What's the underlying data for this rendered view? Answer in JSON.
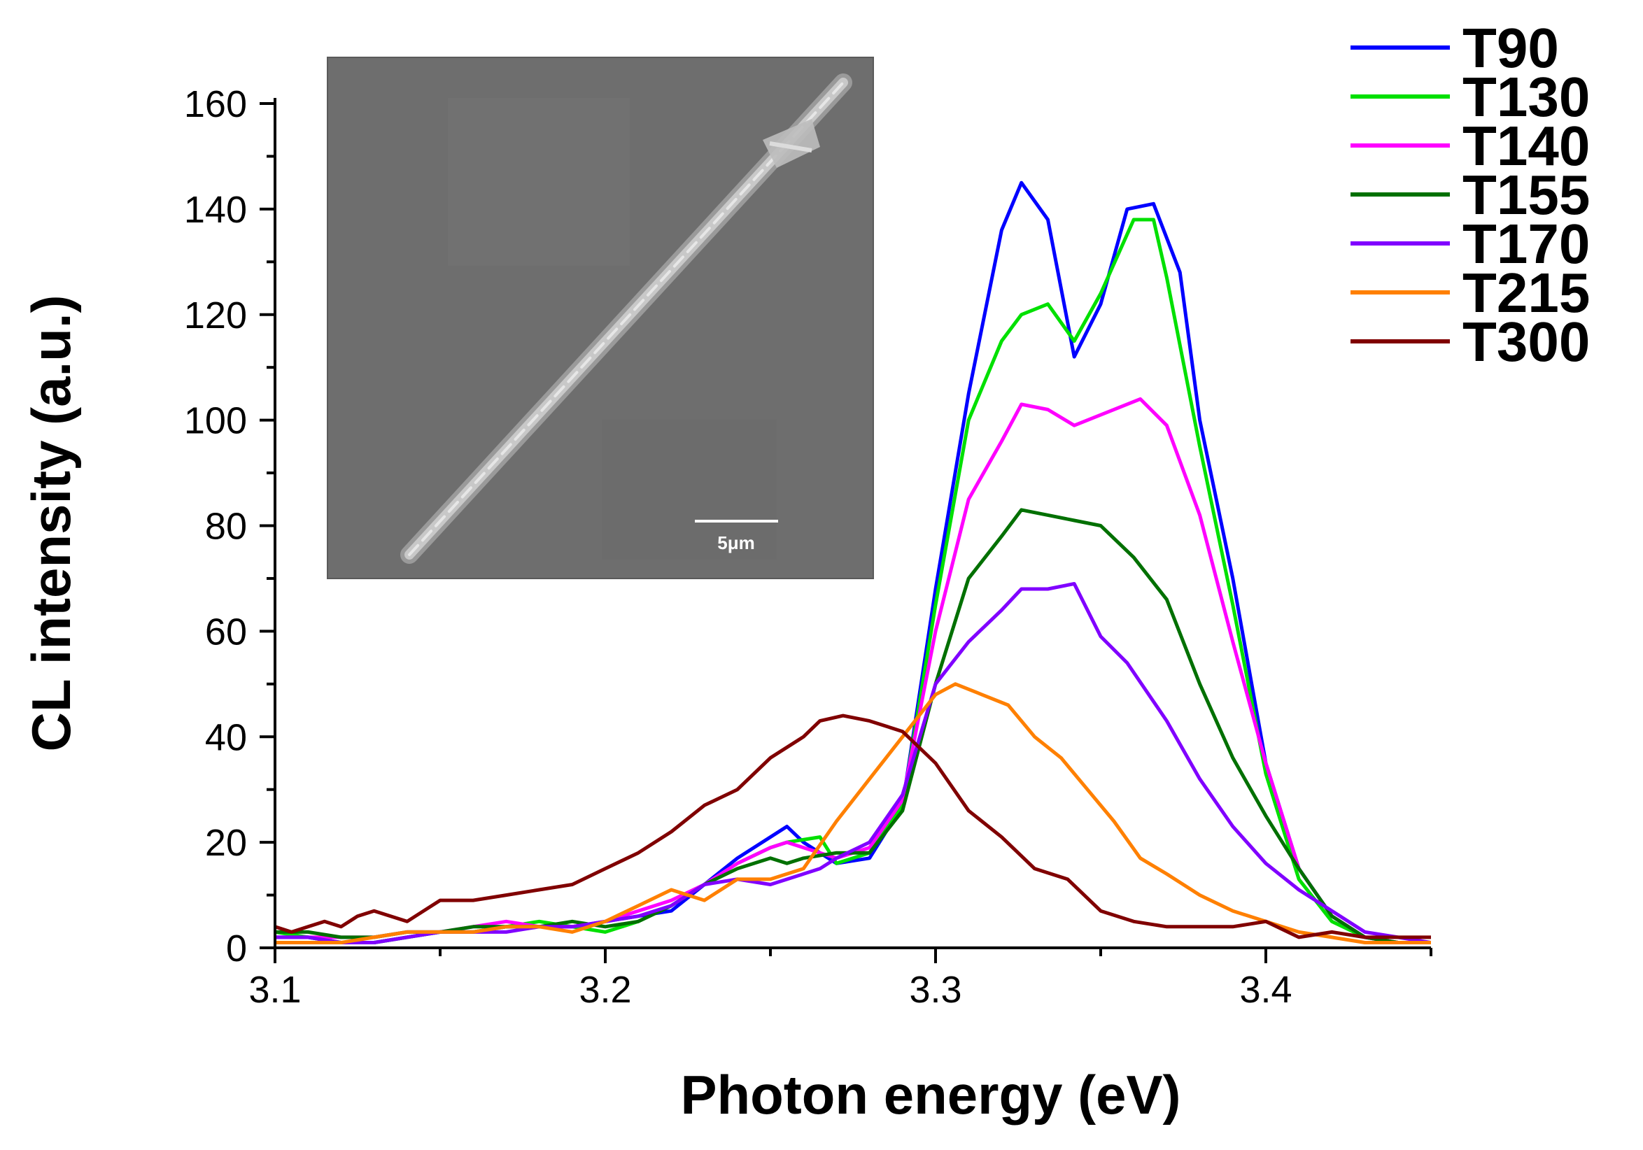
{
  "chart_data": {
    "type": "line",
    "xlabel": "Photon energy (eV)",
    "ylabel": "CL intensity (a.u.)",
    "xlim": [
      3.1,
      3.45
    ],
    "ylim": [
      0,
      160
    ],
    "xticks": [
      3.1,
      3.2,
      3.3,
      3.4
    ],
    "yticks": [
      0,
      20,
      40,
      60,
      80,
      100,
      120,
      140,
      160
    ],
    "xtick_labels": [
      "3.1",
      "3.2",
      "3.3",
      "3.4"
    ],
    "ytick_labels": [
      "0",
      "20",
      "40",
      "60",
      "80",
      "100",
      "120",
      "140",
      "160"
    ],
    "legend_position": "top-right, outside plot",
    "inset": {
      "description": "SEM micrograph of a single nanowire",
      "scale_bar_label": "5μm"
    },
    "series": [
      {
        "name": "T90",
        "color": "#0000ff",
        "x": [
          3.1,
          3.11,
          3.12,
          3.13,
          3.14,
          3.15,
          3.16,
          3.17,
          3.18,
          3.19,
          3.2,
          3.21,
          3.22,
          3.23,
          3.24,
          3.25,
          3.255,
          3.26,
          3.27,
          3.28,
          3.29,
          3.3,
          3.31,
          3.32,
          3.326,
          3.334,
          3.342,
          3.35,
          3.358,
          3.366,
          3.374,
          3.38,
          3.39,
          3.4,
          3.41,
          3.42,
          3.43,
          3.44,
          3.45
        ],
        "y": [
          2,
          2,
          1,
          1,
          2,
          3,
          3,
          4,
          4,
          4,
          5,
          6,
          7,
          12,
          17,
          21,
          23,
          20,
          16,
          17,
          27,
          68,
          105,
          136,
          145,
          138,
          112,
          122,
          140,
          141,
          128,
          100,
          70,
          35,
          15,
          6,
          2,
          1,
          1
        ]
      },
      {
        "name": "T130",
        "color": "#00e000",
        "x": [
          3.1,
          3.11,
          3.12,
          3.13,
          3.14,
          3.15,
          3.16,
          3.17,
          3.18,
          3.19,
          3.2,
          3.21,
          3.22,
          3.23,
          3.24,
          3.25,
          3.255,
          3.265,
          3.27,
          3.28,
          3.29,
          3.3,
          3.31,
          3.32,
          3.326,
          3.334,
          3.342,
          3.35,
          3.36,
          3.366,
          3.37,
          3.38,
          3.39,
          3.4,
          3.41,
          3.42,
          3.43,
          3.44,
          3.45
        ],
        "y": [
          3,
          2,
          1,
          1,
          2,
          3,
          3,
          4,
          5,
          4,
          3,
          5,
          8,
          12,
          16,
          19,
          20,
          21,
          16,
          18,
          27,
          65,
          100,
          115,
          120,
          122,
          115,
          124,
          138,
          138,
          127,
          95,
          65,
          33,
          13,
          5,
          2,
          1,
          1
        ]
      },
      {
        "name": "T140",
        "color": "#ff00ff",
        "x": [
          3.1,
          3.11,
          3.12,
          3.13,
          3.14,
          3.15,
          3.16,
          3.17,
          3.18,
          3.19,
          3.2,
          3.21,
          3.22,
          3.23,
          3.24,
          3.25,
          3.255,
          3.26,
          3.27,
          3.28,
          3.29,
          3.3,
          3.31,
          3.32,
          3.326,
          3.334,
          3.342,
          3.35,
          3.362,
          3.37,
          3.38,
          3.39,
          3.4,
          3.41,
          3.42,
          3.43,
          3.44,
          3.45
        ],
        "y": [
          2,
          2,
          2,
          2,
          3,
          3,
          4,
          5,
          4,
          4,
          5,
          7,
          9,
          12,
          16,
          19,
          20,
          19,
          17,
          19,
          28,
          60,
          85,
          96,
          103,
          102,
          99,
          101,
          104,
          99,
          82,
          58,
          35,
          15,
          6,
          2,
          1,
          1
        ]
      },
      {
        "name": "T155",
        "color": "#007000",
        "x": [
          3.1,
          3.11,
          3.12,
          3.13,
          3.14,
          3.15,
          3.16,
          3.17,
          3.18,
          3.19,
          3.2,
          3.21,
          3.22,
          3.23,
          3.24,
          3.25,
          3.255,
          3.26,
          3.27,
          3.28,
          3.29,
          3.3,
          3.31,
          3.32,
          3.326,
          3.334,
          3.342,
          3.35,
          3.36,
          3.37,
          3.38,
          3.39,
          3.4,
          3.41,
          3.42,
          3.43,
          3.44,
          3.45
        ],
        "y": [
          3,
          3,
          2,
          2,
          3,
          3,
          4,
          4,
          4,
          5,
          4,
          5,
          8,
          12,
          15,
          17,
          16,
          17,
          18,
          18,
          26,
          50,
          70,
          78,
          83,
          82,
          81,
          80,
          74,
          66,
          50,
          36,
          25,
          15,
          6,
          2,
          1,
          1
        ]
      },
      {
        "name": "T170",
        "color": "#8000ff",
        "x": [
          3.1,
          3.11,
          3.12,
          3.13,
          3.14,
          3.15,
          3.16,
          3.17,
          3.18,
          3.19,
          3.2,
          3.21,
          3.22,
          3.23,
          3.24,
          3.25,
          3.26,
          3.265,
          3.27,
          3.28,
          3.29,
          3.3,
          3.31,
          3.32,
          3.326,
          3.334,
          3.342,
          3.35,
          3.358,
          3.37,
          3.38,
          3.39,
          3.4,
          3.41,
          3.42,
          3.43,
          3.44,
          3.45
        ],
        "y": [
          2,
          2,
          1,
          1,
          2,
          3,
          3,
          3,
          4,
          4,
          5,
          6,
          8,
          12,
          13,
          12,
          14,
          15,
          17,
          20,
          29,
          50,
          58,
          64,
          68,
          68,
          69,
          59,
          54,
          43,
          32,
          23,
          16,
          11,
          7,
          3,
          2,
          1
        ]
      },
      {
        "name": "T215",
        "color": "#ff8000",
        "x": [
          3.1,
          3.11,
          3.12,
          3.13,
          3.14,
          3.15,
          3.16,
          3.17,
          3.18,
          3.19,
          3.2,
          3.21,
          3.22,
          3.23,
          3.24,
          3.25,
          3.26,
          3.27,
          3.28,
          3.29,
          3.3,
          3.306,
          3.314,
          3.322,
          3.33,
          3.338,
          3.346,
          3.354,
          3.362,
          3.37,
          3.38,
          3.39,
          3.4,
          3.41,
          3.42,
          3.43,
          3.44,
          3.45
        ],
        "y": [
          1,
          1,
          1,
          2,
          3,
          3,
          3,
          4,
          4,
          3,
          5,
          8,
          11,
          9,
          13,
          13,
          15,
          24,
          32,
          40,
          48,
          50,
          48,
          46,
          40,
          36,
          30,
          24,
          17,
          14,
          10,
          7,
          5,
          3,
          2,
          1,
          1,
          1
        ]
      },
      {
        "name": "T300",
        "color": "#800000",
        "x": [
          3.1,
          3.105,
          3.11,
          3.115,
          3.12,
          3.125,
          3.13,
          3.135,
          3.14,
          3.145,
          3.15,
          3.16,
          3.17,
          3.18,
          3.19,
          3.2,
          3.21,
          3.22,
          3.23,
          3.24,
          3.25,
          3.26,
          3.265,
          3.272,
          3.28,
          3.29,
          3.3,
          3.31,
          3.32,
          3.33,
          3.34,
          3.35,
          3.36,
          3.37,
          3.38,
          3.39,
          3.4,
          3.41,
          3.42,
          3.43,
          3.44,
          3.45
        ],
        "y": [
          4,
          3,
          4,
          5,
          4,
          6,
          7,
          6,
          5,
          7,
          9,
          9,
          10,
          11,
          12,
          15,
          18,
          22,
          27,
          30,
          36,
          40,
          43,
          44,
          43,
          41,
          35,
          26,
          21,
          15,
          13,
          7,
          5,
          4,
          4,
          4,
          5,
          2,
          3,
          2,
          2,
          2
        ]
      }
    ]
  }
}
